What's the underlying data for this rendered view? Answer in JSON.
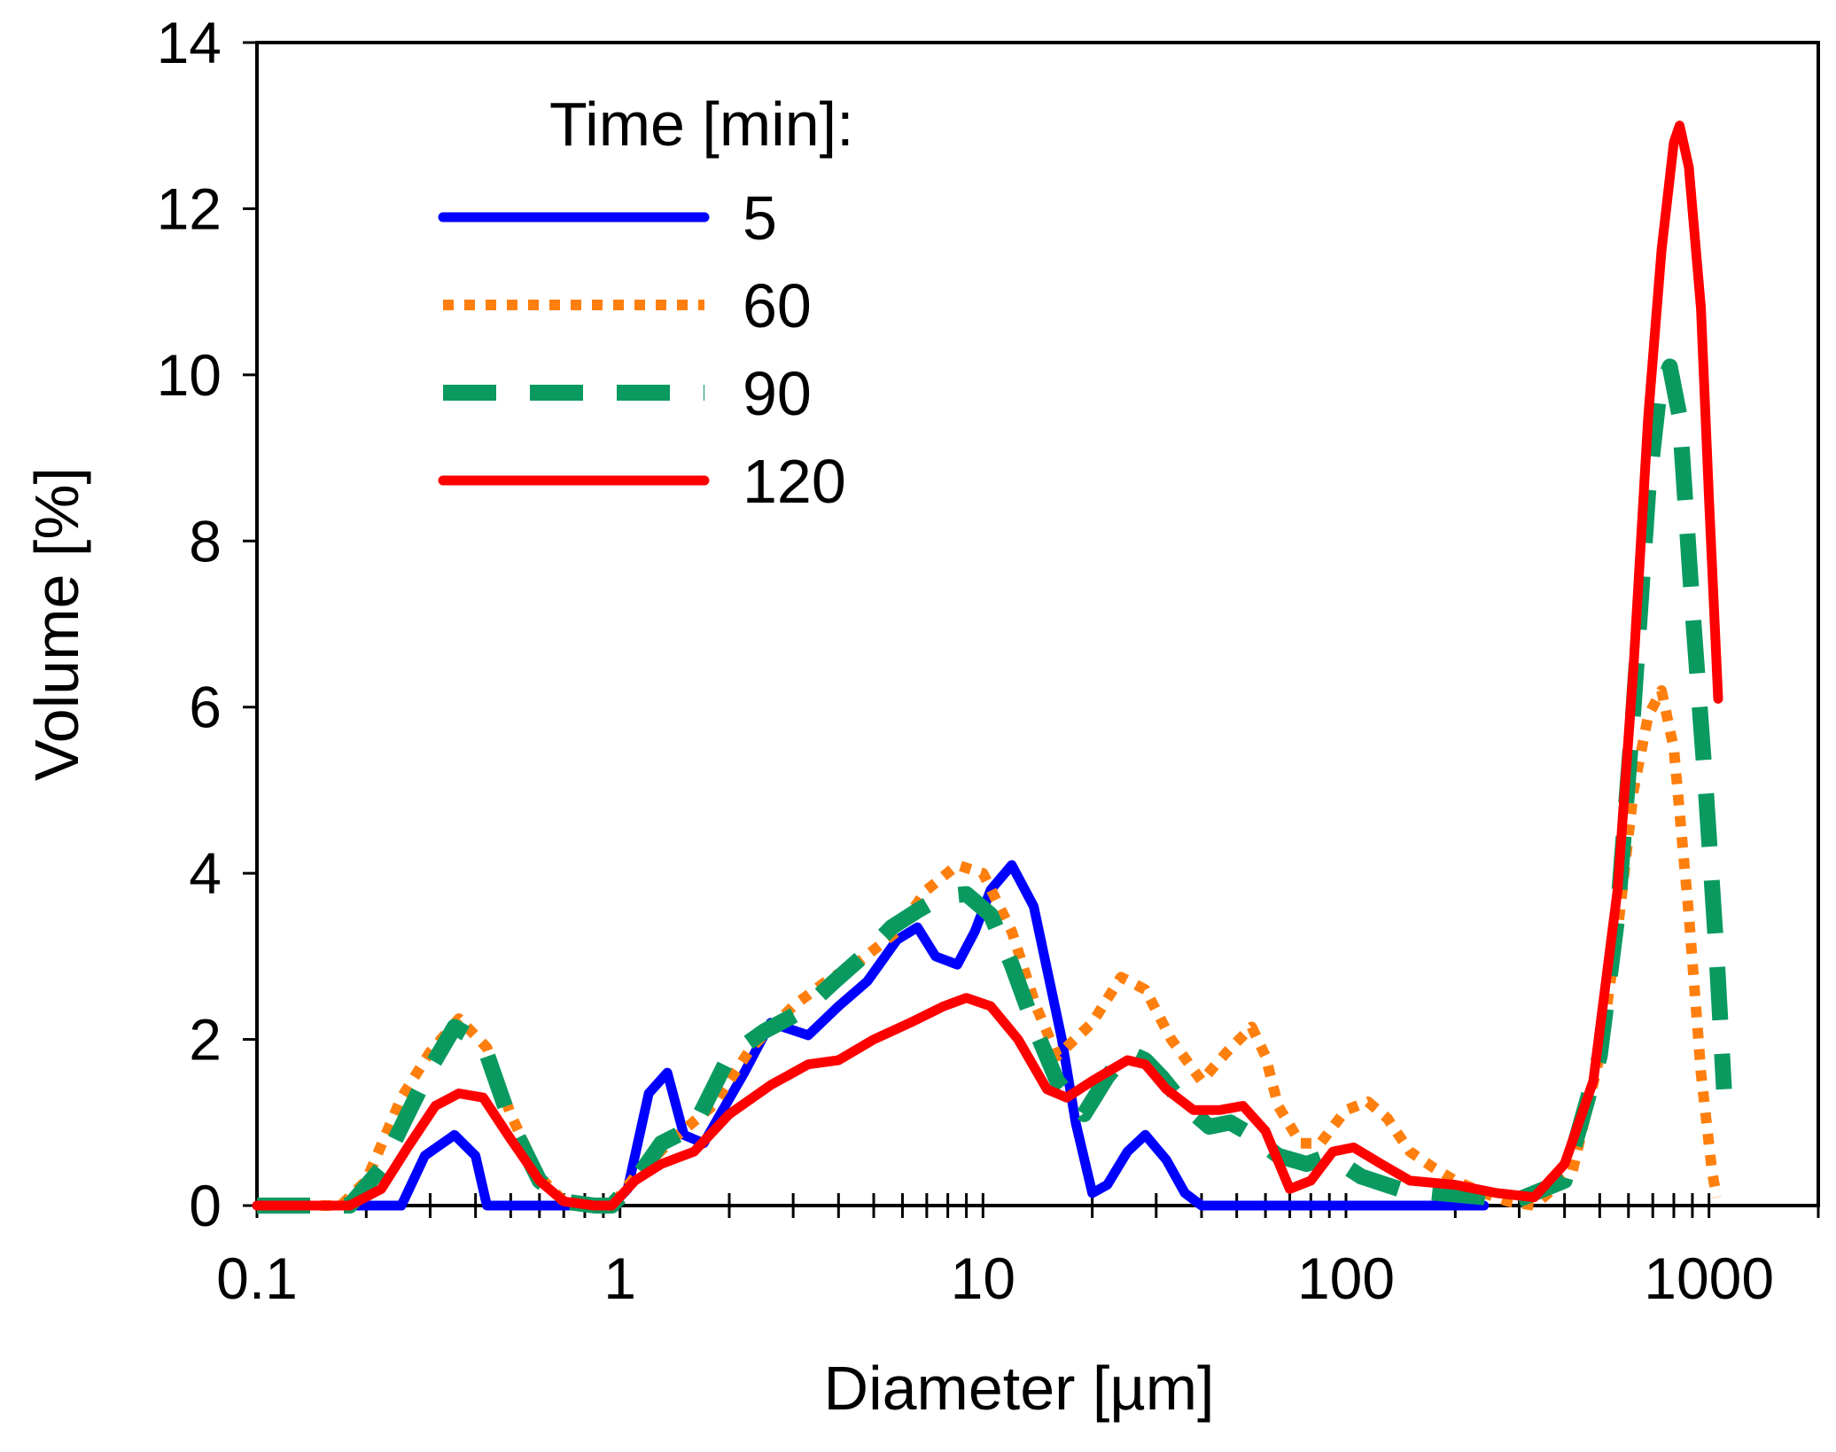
{
  "chart_data": {
    "type": "line",
    "xlabel": "Diameter [µm]",
    "ylabel": "Volume [%]",
    "x_scale": "log",
    "xlim": [
      0.1,
      2000
    ],
    "ylim": [
      0,
      14
    ],
    "x_ticks": [
      0.1,
      1,
      10,
      100,
      1000
    ],
    "x_tick_labels": [
      "0.1",
      "1",
      "10",
      "100",
      "1000"
    ],
    "y_ticks": [
      0,
      2,
      4,
      6,
      8,
      10,
      12,
      14
    ],
    "y_tick_labels": [
      "0",
      "2",
      "4",
      "6",
      "8",
      "10",
      "12",
      "14"
    ],
    "grid": false,
    "legend": {
      "title": "Time [min]:",
      "position": "top-left"
    },
    "series": [
      {
        "name": "5",
        "color": "#0000ff",
        "style": "solid",
        "points": [
          [
            0.1,
            0
          ],
          [
            0.25,
            0
          ],
          [
            0.29,
            0.6
          ],
          [
            0.35,
            0.85
          ],
          [
            0.4,
            0.6
          ],
          [
            0.43,
            0
          ],
          [
            0.95,
            0
          ],
          [
            1.05,
            0.2
          ],
          [
            1.2,
            1.35
          ],
          [
            1.35,
            1.6
          ],
          [
            1.5,
            0.85
          ],
          [
            1.7,
            0.75
          ],
          [
            2.2,
            1.6
          ],
          [
            2.6,
            2.2
          ],
          [
            3.3,
            2.05
          ],
          [
            4.0,
            2.4
          ],
          [
            4.8,
            2.7
          ],
          [
            5.8,
            3.2
          ],
          [
            6.6,
            3.35
          ],
          [
            7.4,
            3.0
          ],
          [
            8.5,
            2.9
          ],
          [
            9.5,
            3.3
          ],
          [
            10.5,
            3.8
          ],
          [
            12,
            4.1
          ],
          [
            13.8,
            3.6
          ],
          [
            16.5,
            2.0
          ],
          [
            18,
            1.0
          ],
          [
            20,
            0.15
          ],
          [
            22,
            0.25
          ],
          [
            25,
            0.65
          ],
          [
            28,
            0.85
          ],
          [
            32,
            0.55
          ],
          [
            36,
            0.15
          ],
          [
            40,
            0
          ],
          [
            200,
            0
          ],
          [
            240,
            0
          ]
        ]
      },
      {
        "name": "60",
        "color": "#ff7f0e",
        "style": "dotted",
        "points": [
          [
            0.1,
            0
          ],
          [
            0.17,
            0
          ],
          [
            0.2,
            0.3
          ],
          [
            0.25,
            1.3
          ],
          [
            0.3,
            1.85
          ],
          [
            0.36,
            2.25
          ],
          [
            0.43,
            1.9
          ],
          [
            0.5,
            1.1
          ],
          [
            0.6,
            0.35
          ],
          [
            0.7,
            0.05
          ],
          [
            0.8,
            0
          ],
          [
            0.95,
            0
          ],
          [
            1.1,
            0.35
          ],
          [
            1.4,
            0.8
          ],
          [
            1.8,
            1.2
          ],
          [
            2.3,
            1.9
          ],
          [
            3.0,
            2.4
          ],
          [
            3.7,
            2.7
          ],
          [
            4.6,
            2.95
          ],
          [
            5.8,
            3.3
          ],
          [
            7.0,
            3.8
          ],
          [
            8.5,
            4.1
          ],
          [
            10,
            4.0
          ],
          [
            12,
            3.3
          ],
          [
            14,
            2.4
          ],
          [
            16,
            1.8
          ],
          [
            20,
            2.2
          ],
          [
            24,
            2.75
          ],
          [
            28,
            2.6
          ],
          [
            33,
            2.0
          ],
          [
            40,
            1.5
          ],
          [
            47,
            1.85
          ],
          [
            55,
            2.15
          ],
          [
            60,
            1.8
          ],
          [
            65,
            1.2
          ],
          [
            75,
            0.75
          ],
          [
            85,
            0.75
          ],
          [
            100,
            1.15
          ],
          [
            115,
            1.25
          ],
          [
            130,
            1.05
          ],
          [
            150,
            0.65
          ],
          [
            175,
            0.45
          ],
          [
            200,
            0.3
          ],
          [
            240,
            0.15
          ],
          [
            280,
            0.05
          ],
          [
            330,
            0
          ],
          [
            350,
            0.1
          ],
          [
            420,
            0.4
          ],
          [
            500,
            1.8
          ],
          [
            560,
            3.3
          ],
          [
            620,
            5.0
          ],
          [
            680,
            5.9
          ],
          [
            740,
            6.2
          ],
          [
            800,
            5.5
          ],
          [
            880,
            3.5
          ],
          [
            950,
            1.6
          ],
          [
            1020,
            0.4
          ],
          [
            1050,
            0.1
          ]
        ]
      },
      {
        "name": "90",
        "color": "#0a9a60",
        "style": "dashed",
        "points": [
          [
            0.1,
            0
          ],
          [
            0.18,
            0
          ],
          [
            0.22,
            0.45
          ],
          [
            0.26,
            1.1
          ],
          [
            0.3,
            1.65
          ],
          [
            0.35,
            2.15
          ],
          [
            0.42,
            1.95
          ],
          [
            0.5,
            1.0
          ],
          [
            0.6,
            0.3
          ],
          [
            0.7,
            0.05
          ],
          [
            0.85,
            0
          ],
          [
            0.95,
            0
          ],
          [
            1.1,
            0.3
          ],
          [
            1.3,
            0.75
          ],
          [
            1.6,
            0.95
          ],
          [
            2.0,
            1.8
          ],
          [
            2.5,
            2.1
          ],
          [
            3.2,
            2.35
          ],
          [
            3.9,
            2.7
          ],
          [
            4.8,
            3.05
          ],
          [
            5.6,
            3.35
          ],
          [
            6.6,
            3.55
          ],
          [
            7.7,
            3.72
          ],
          [
            9.0,
            3.75
          ],
          [
            10.5,
            3.5
          ],
          [
            12,
            2.9
          ],
          [
            14,
            2.1
          ],
          [
            16,
            1.5
          ],
          [
            19,
            1.1
          ],
          [
            22,
            1.55
          ],
          [
            25,
            1.85
          ],
          [
            28,
            1.75
          ],
          [
            31,
            1.55
          ],
          [
            36,
            1.2
          ],
          [
            42,
            0.95
          ],
          [
            48,
            1.0
          ],
          [
            55,
            0.85
          ],
          [
            65,
            0.6
          ],
          [
            78,
            0.5
          ],
          [
            90,
            0.6
          ],
          [
            110,
            0.35
          ],
          [
            140,
            0.2
          ],
          [
            180,
            0.15
          ],
          [
            240,
            0.1
          ],
          [
            290,
            0.05
          ],
          [
            330,
            0.15
          ],
          [
            400,
            0.3
          ],
          [
            500,
            1.8
          ],
          [
            560,
            3.5
          ],
          [
            620,
            6.0
          ],
          [
            680,
            8.6
          ],
          [
            730,
            9.8
          ],
          [
            780,
            10.1
          ],
          [
            830,
            9.5
          ],
          [
            900,
            7.2
          ],
          [
            980,
            5.0
          ],
          [
            1050,
            3.0
          ],
          [
            1100,
            1.4
          ]
        ]
      },
      {
        "name": "120",
        "color": "#ff0000",
        "style": "solid",
        "points": [
          [
            0.1,
            0
          ],
          [
            0.18,
            0
          ],
          [
            0.22,
            0.2
          ],
          [
            0.26,
            0.7
          ],
          [
            0.31,
            1.2
          ],
          [
            0.36,
            1.35
          ],
          [
            0.42,
            1.3
          ],
          [
            0.5,
            0.8
          ],
          [
            0.6,
            0.3
          ],
          [
            0.7,
            0.05
          ],
          [
            0.85,
            0
          ],
          [
            0.95,
            0
          ],
          [
            1.1,
            0.3
          ],
          [
            1.3,
            0.5
          ],
          [
            1.6,
            0.65
          ],
          [
            2.0,
            1.1
          ],
          [
            2.6,
            1.45
          ],
          [
            3.3,
            1.7
          ],
          [
            4.0,
            1.75
          ],
          [
            5.0,
            2.0
          ],
          [
            6.3,
            2.2
          ],
          [
            7.8,
            2.4
          ],
          [
            9.0,
            2.5
          ],
          [
            10.5,
            2.4
          ],
          [
            12.5,
            2.0
          ],
          [
            15,
            1.4
          ],
          [
            17,
            1.3
          ],
          [
            20,
            1.5
          ],
          [
            25,
            1.75
          ],
          [
            28,
            1.7
          ],
          [
            32,
            1.4
          ],
          [
            38,
            1.15
          ],
          [
            45,
            1.15
          ],
          [
            52,
            1.2
          ],
          [
            60,
            0.9
          ],
          [
            70,
            0.2
          ],
          [
            80,
            0.3
          ],
          [
            92,
            0.65
          ],
          [
            105,
            0.7
          ],
          [
            125,
            0.5
          ],
          [
            150,
            0.3
          ],
          [
            200,
            0.25
          ],
          [
            260,
            0.15
          ],
          [
            330,
            0.1
          ],
          [
            400,
            0.5
          ],
          [
            480,
            1.5
          ],
          [
            560,
            3.8
          ],
          [
            620,
            6.5
          ],
          [
            680,
            9.5
          ],
          [
            740,
            11.5
          ],
          [
            800,
            12.8
          ],
          [
            830,
            13.0
          ],
          [
            880,
            12.5
          ],
          [
            950,
            10.8
          ],
          [
            1000,
            8.5
          ],
          [
            1060,
            6.1
          ]
        ]
      }
    ]
  }
}
